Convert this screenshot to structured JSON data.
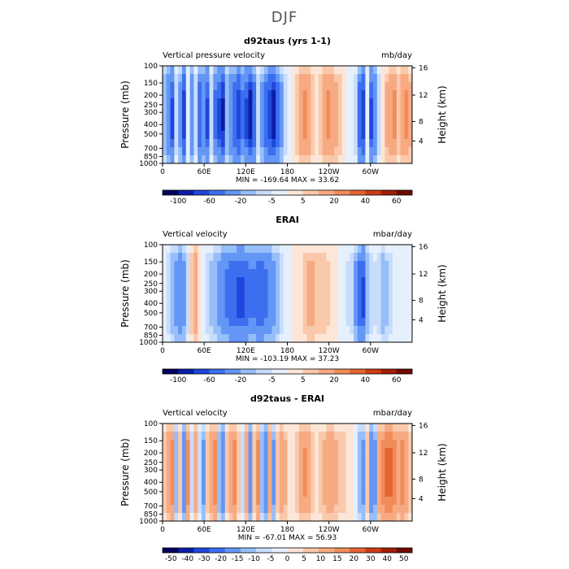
{
  "figure_title": "DJF",
  "chart_data": [
    {
      "type": "heatmap",
      "title": "d92taus (yrs 1-1)",
      "left_label": "Vertical pressure velocity",
      "units": "mb/day",
      "ylabel": "Pressure (mb)",
      "ylabel_right": "Height (km)",
      "pressure_ticks": [
        "100",
        "150",
        "200",
        "250",
        "300",
        "400",
        "500",
        "700",
        "850",
        "1000"
      ],
      "height_ticks": [
        "16",
        "12",
        "8",
        "4"
      ],
      "lon_ticks": [
        "0",
        "60E",
        "120E",
        "180",
        "120W",
        "60W"
      ],
      "stats": "MIN = -169.64   MAX =  33.62",
      "colorbar_labels": [
        "-100",
        "-60",
        "-20",
        "-5",
        "5",
        "20",
        "40",
        "60"
      ],
      "colors": [
        "#00005a",
        "#0a1ea5",
        "#1e46dc",
        "#3c6ef0",
        "#6496f5",
        "#96bef9",
        "#c8dcfc",
        "#e6f0fd",
        "#fde6d8",
        "#fac8aa",
        "#f7aa82",
        "#f08c5a",
        "#e66432",
        "#cd3c14",
        "#a01e05",
        "#6e0a00"
      ],
      "column_values": [
        -20,
        -40,
        -70,
        -10,
        -30,
        -80,
        -5,
        -40,
        -10,
        -60,
        -40,
        -70,
        -10,
        -50,
        -70,
        -90,
        -20,
        -40,
        -60,
        -80,
        -50,
        -70,
        -100,
        -60,
        -10,
        -30,
        -60,
        -80,
        -100,
        -60,
        -30,
        -10,
        -5,
        5,
        10,
        20,
        25,
        20,
        10,
        5,
        10,
        20,
        25,
        20,
        15,
        10,
        5,
        -2,
        -5,
        -10,
        -60,
        -80,
        -5,
        -70,
        -40,
        -10,
        5,
        15,
        20,
        25,
        10,
        20,
        25,
        15
      ]
    },
    {
      "type": "heatmap",
      "title": "ERAI",
      "left_label": "Vertical velocity",
      "units": "mbar/day",
      "ylabel": "Pressure (mb)",
      "ylabel_right": "Height (km)",
      "pressure_ticks": [
        "100",
        "150",
        "200",
        "250",
        "300",
        "400",
        "500",
        "700",
        "850",
        "1000"
      ],
      "height_ticks": [
        "16",
        "12",
        "8",
        "4"
      ],
      "lon_ticks": [
        "0",
        "60E",
        "120E",
        "180",
        "120W",
        "60W"
      ],
      "stats": "MIN = -103.19   MAX =  37.23",
      "colorbar_labels": [
        "-100",
        "-60",
        "-20",
        "-5",
        "5",
        "20",
        "40",
        "60"
      ],
      "colors": [
        "#00005a",
        "#0a1ea5",
        "#1e46dc",
        "#3c6ef0",
        "#6496f5",
        "#96bef9",
        "#c8dcfc",
        "#e6f0fd",
        "#fde6d8",
        "#fac8aa",
        "#f7aa82",
        "#f08c5a",
        "#e66432",
        "#cd3c14",
        "#a01e05",
        "#6e0a00"
      ],
      "column_values": [
        -5,
        -10,
        -20,
        -30,
        -40,
        -30,
        -10,
        10,
        20,
        5,
        -5,
        -10,
        -15,
        -20,
        -30,
        -40,
        -50,
        -60,
        -60,
        -70,
        -70,
        -60,
        -50,
        -50,
        -60,
        -60,
        -50,
        -40,
        -30,
        -20,
        -10,
        -5,
        -2,
        5,
        3,
        5,
        10,
        15,
        15,
        10,
        10,
        10,
        8,
        5,
        3,
        -3,
        -5,
        -8,
        -10,
        -30,
        -60,
        -70,
        -20,
        -10,
        -8,
        -10,
        -20,
        -15,
        -10,
        -5,
        -3,
        -2,
        -5,
        -3
      ]
    },
    {
      "type": "heatmap",
      "title": "d92taus - ERAI",
      "left_label": "Vertical velocity",
      "units": "mbar/day",
      "ylabel": "Pressure (mb)",
      "ylabel_right": "Height (km)",
      "pressure_ticks": [
        "100",
        "150",
        "200",
        "250",
        "300",
        "400",
        "500",
        "700",
        "850",
        "1000"
      ],
      "height_ticks": [
        "16",
        "12",
        "8",
        "4"
      ],
      "lon_ticks": [
        "0",
        "60E",
        "120E",
        "180",
        "120W",
        "60W"
      ],
      "stats": "MIN = -67.01   MAX =  56.93",
      "colorbar_labels": [
        "-50",
        "-40",
        "-30",
        "-20",
        "-15",
        "-10",
        "-5",
        "0",
        "5",
        "10",
        "15",
        "20",
        "30",
        "40",
        "50"
      ],
      "colors": [
        "#00005a",
        "#0a1ea5",
        "#1e46dc",
        "#3c6ef0",
        "#6496f5",
        "#96bef9",
        "#c8dcfc",
        "#e6f0fd",
        "#fde6d8",
        "#fac8aa",
        "#f7aa82",
        "#f08c5a",
        "#e66432",
        "#cd3c14",
        "#a01e05",
        "#6e0a00"
      ],
      "column_values": [
        10,
        20,
        30,
        -20,
        10,
        -40,
        30,
        -10,
        20,
        -10,
        -30,
        10,
        20,
        30,
        -20,
        -40,
        10,
        20,
        30,
        10,
        -10,
        20,
        -40,
        10,
        30,
        -20,
        -40,
        20,
        -30,
        10,
        20,
        15,
        5,
        3,
        10,
        20,
        25,
        20,
        10,
        5,
        10,
        15,
        20,
        20,
        15,
        10,
        10,
        5,
        3,
        -5,
        -20,
        -30,
        10,
        -40,
        -30,
        20,
        30,
        40,
        40,
        30,
        20,
        30,
        20,
        10
      ]
    }
  ]
}
